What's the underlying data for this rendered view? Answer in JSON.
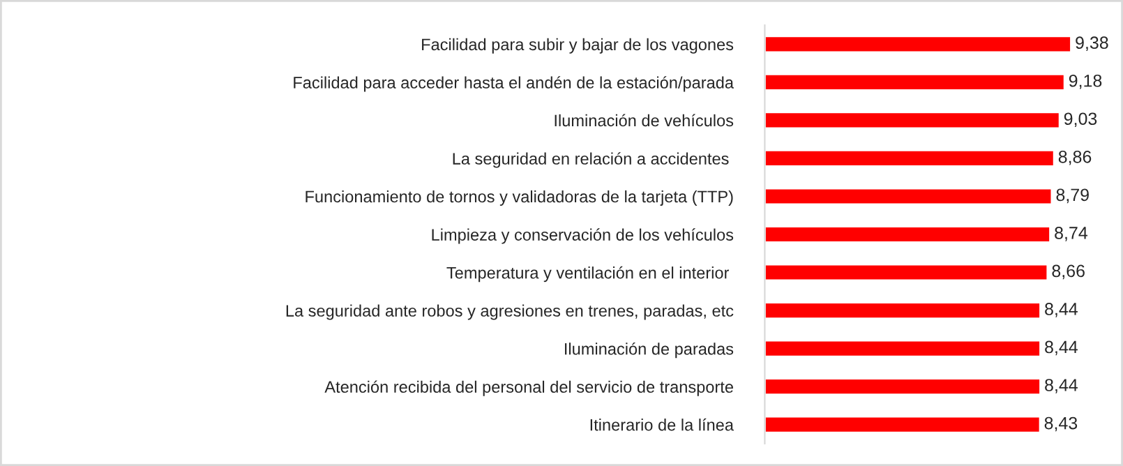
{
  "chart_data": {
    "type": "bar",
    "orientation": "horizontal",
    "categories": [
      "Facilidad para subir y bajar de los vagones",
      "Facilidad para acceder hasta el andén de la estación/parada",
      "Iluminación de vehículos",
      "La seguridad en relación a accidentes ",
      "Funcionamiento de tornos y validadoras de la tarjeta (TTP)",
      "Limpieza y conservación de los vehículos",
      "Temperatura y ventilación en el interior ",
      "La seguridad ante robos y agresiones en trenes, paradas, etc",
      "Iluminación de paradas",
      "Atención recibida del personal del servicio de transporte",
      "Itinerario de la línea"
    ],
    "values": [
      9.38,
      9.18,
      9.03,
      8.86,
      8.79,
      8.74,
      8.66,
      8.44,
      8.44,
      8.44,
      8.43
    ],
    "value_labels": [
      "9,38",
      "9,18",
      "9,03",
      "8,86",
      "8,79",
      "8,74",
      "8,66",
      "8,44",
      "8,44",
      "8,44",
      "8,43"
    ],
    "color": "#ff0000",
    "grid": false,
    "legend": false,
    "tick_labels": "y"
  }
}
